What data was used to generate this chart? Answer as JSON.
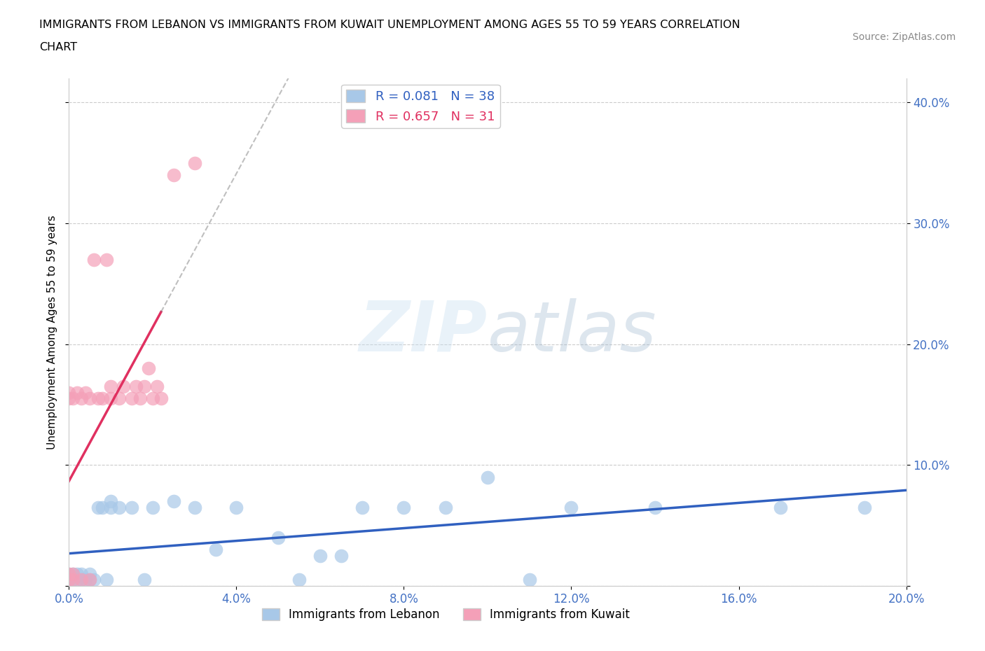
{
  "title_line1": "IMMIGRANTS FROM LEBANON VS IMMIGRANTS FROM KUWAIT UNEMPLOYMENT AMONG AGES 55 TO 59 YEARS CORRELATION",
  "title_line2": "CHART",
  "source": "Source: ZipAtlas.com",
  "ylabel": "Unemployment Among Ages 55 to 59 years",
  "lebanon_R": 0.081,
  "lebanon_N": 38,
  "kuwait_R": 0.657,
  "kuwait_N": 31,
  "lebanon_color": "#a8c8e8",
  "kuwait_color": "#f4a0b8",
  "lebanon_line_color": "#3060c0",
  "kuwait_line_color": "#e03060",
  "xlim": [
    0.0,
    0.2
  ],
  "ylim": [
    0.0,
    0.42
  ],
  "xticks": [
    0.0,
    0.04,
    0.08,
    0.12,
    0.16,
    0.2
  ],
  "xticklabels": [
    "0.0%",
    "4.0%",
    "8.0%",
    "12.0%",
    "16.0%",
    "20.0%"
  ],
  "yticks": [
    0.0,
    0.1,
    0.2,
    0.3,
    0.4
  ],
  "yticklabels": [
    "",
    "10.0%",
    "20.0%",
    "30.0%",
    "40.0%"
  ],
  "lebanon_x": [
    0.0,
    0.0,
    0.001,
    0.001,
    0.002,
    0.002,
    0.003,
    0.003,
    0.004,
    0.005,
    0.005,
    0.006,
    0.007,
    0.008,
    0.009,
    0.01,
    0.01,
    0.012,
    0.015,
    0.018,
    0.02,
    0.025,
    0.03,
    0.035,
    0.04,
    0.05,
    0.055,
    0.06,
    0.065,
    0.07,
    0.08,
    0.09,
    0.1,
    0.11,
    0.12,
    0.14,
    0.17,
    0.19
  ],
  "lebanon_y": [
    0.005,
    0.01,
    0.005,
    0.01,
    0.005,
    0.01,
    0.005,
    0.01,
    0.005,
    0.005,
    0.01,
    0.005,
    0.065,
    0.065,
    0.005,
    0.065,
    0.07,
    0.065,
    0.065,
    0.005,
    0.065,
    0.07,
    0.065,
    0.03,
    0.065,
    0.04,
    0.005,
    0.025,
    0.025,
    0.065,
    0.065,
    0.065,
    0.09,
    0.005,
    0.065,
    0.065,
    0.065,
    0.065
  ],
  "kuwait_x": [
    0.0,
    0.0,
    0.0,
    0.0,
    0.001,
    0.001,
    0.001,
    0.002,
    0.003,
    0.003,
    0.004,
    0.005,
    0.005,
    0.006,
    0.007,
    0.008,
    0.009,
    0.01,
    0.01,
    0.012,
    0.013,
    0.015,
    0.016,
    0.017,
    0.018,
    0.019,
    0.02,
    0.021,
    0.022,
    0.025,
    0.03
  ],
  "kuwait_y": [
    0.005,
    0.01,
    0.155,
    0.16,
    0.005,
    0.01,
    0.155,
    0.16,
    0.005,
    0.155,
    0.16,
    0.005,
    0.155,
    0.27,
    0.155,
    0.155,
    0.27,
    0.155,
    0.165,
    0.155,
    0.165,
    0.155,
    0.165,
    0.155,
    0.165,
    0.18,
    0.155,
    0.165,
    0.155,
    0.34,
    0.35
  ]
}
